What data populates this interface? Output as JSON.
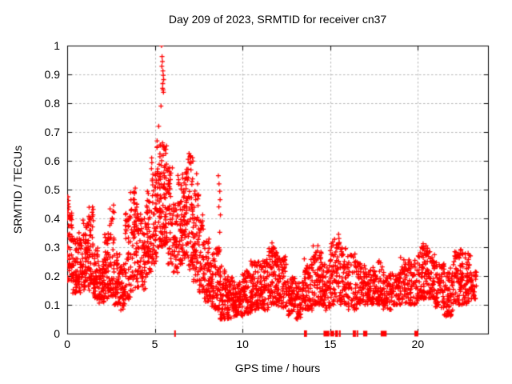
{
  "chart_data": {
    "type": "scatter",
    "title": "Day 209 of 2023, SRMTID for receiver cn37",
    "xlabel": "GPS time / hours",
    "ylabel": "SRMTID / TECUs",
    "xlim": [
      0,
      24
    ],
    "ylim": [
      0,
      1
    ],
    "xticks": [
      0,
      5,
      10,
      15,
      20
    ],
    "xtick_labels": [
      "0",
      "5",
      "10",
      "15",
      "20"
    ],
    "ytick_values": [
      0,
      0.1,
      0.2,
      0.3,
      0.4,
      0.5,
      0.6,
      0.7,
      0.8,
      0.9,
      1
    ],
    "ytick_labels": [
      "0",
      "0.1",
      "0.2",
      "0.3",
      "0.4",
      "0.5",
      "0.6",
      "0.7",
      "0.8",
      "0.9",
      "1"
    ],
    "grid": true,
    "legend": false,
    "marker": "plus",
    "marker_color": "#ff0000",
    "grid_color": "#b4b4b4",
    "border_color": "#000000",
    "series_name": "SRMTID",
    "density_bands": [
      [
        0.0,
        0.3,
        0.18,
        0.42,
        60
      ],
      [
        0.3,
        0.6,
        0.14,
        0.33,
        44
      ],
      [
        0.6,
        0.9,
        0.14,
        0.35,
        46
      ],
      [
        0.9,
        1.2,
        0.15,
        0.4,
        52
      ],
      [
        1.2,
        1.5,
        0.14,
        0.44,
        54
      ],
      [
        1.5,
        1.8,
        0.12,
        0.3,
        46
      ],
      [
        1.8,
        2.1,
        0.1,
        0.26,
        44
      ],
      [
        2.1,
        2.4,
        0.12,
        0.36,
        46
      ],
      [
        2.4,
        2.7,
        0.13,
        0.46,
        46
      ],
      [
        2.7,
        3.0,
        0.1,
        0.3,
        42
      ],
      [
        3.0,
        3.3,
        0.08,
        0.24,
        40
      ],
      [
        3.3,
        3.6,
        0.12,
        0.42,
        44
      ],
      [
        3.6,
        3.9,
        0.14,
        0.51,
        50
      ],
      [
        3.9,
        4.2,
        0.16,
        0.45,
        46
      ],
      [
        4.2,
        4.5,
        0.15,
        0.4,
        42
      ],
      [
        4.5,
        4.8,
        0.2,
        0.5,
        46
      ],
      [
        4.8,
        5.1,
        0.24,
        0.62,
        50
      ],
      [
        5.1,
        5.4,
        0.3,
        0.68,
        54
      ],
      [
        5.4,
        5.7,
        0.3,
        0.66,
        54
      ],
      [
        5.7,
        6.0,
        0.24,
        0.58,
        46
      ],
      [
        6.0,
        6.3,
        0.2,
        0.46,
        42
      ],
      [
        6.3,
        6.6,
        0.24,
        0.56,
        48
      ],
      [
        6.6,
        6.9,
        0.26,
        0.6,
        54
      ],
      [
        6.9,
        7.2,
        0.22,
        0.62,
        52
      ],
      [
        7.2,
        7.5,
        0.18,
        0.52,
        44
      ],
      [
        7.5,
        7.8,
        0.14,
        0.42,
        42
      ],
      [
        7.8,
        8.1,
        0.11,
        0.33,
        42
      ],
      [
        8.1,
        8.4,
        0.09,
        0.28,
        42
      ],
      [
        8.4,
        8.7,
        0.08,
        0.3,
        40
      ],
      [
        8.7,
        9.0,
        0.05,
        0.24,
        44
      ],
      [
        9.0,
        9.5,
        0.05,
        0.2,
        70
      ],
      [
        9.5,
        10.0,
        0.06,
        0.18,
        70
      ],
      [
        10.0,
        10.5,
        0.07,
        0.22,
        65
      ],
      [
        10.5,
        11.0,
        0.08,
        0.25,
        65
      ],
      [
        11.0,
        11.5,
        0.08,
        0.26,
        68
      ],
      [
        11.5,
        12.0,
        0.1,
        0.3,
        75
      ],
      [
        12.0,
        12.5,
        0.09,
        0.27,
        65
      ],
      [
        12.5,
        13.0,
        0.06,
        0.2,
        60
      ],
      [
        13.0,
        13.5,
        0.05,
        0.18,
        58
      ],
      [
        13.5,
        14.0,
        0.08,
        0.26,
        60
      ],
      [
        14.0,
        14.5,
        0.1,
        0.31,
        64
      ],
      [
        14.5,
        15.0,
        0.08,
        0.25,
        60
      ],
      [
        15.0,
        15.5,
        0.1,
        0.33,
        64
      ],
      [
        15.5,
        16.0,
        0.1,
        0.3,
        60
      ],
      [
        16.0,
        16.5,
        0.08,
        0.28,
        58
      ],
      [
        16.5,
        17.0,
        0.1,
        0.25,
        58
      ],
      [
        17.0,
        17.5,
        0.1,
        0.23,
        58
      ],
      [
        17.5,
        18.0,
        0.1,
        0.26,
        58
      ],
      [
        18.0,
        18.5,
        0.08,
        0.22,
        56
      ],
      [
        18.5,
        19.0,
        0.1,
        0.21,
        52
      ],
      [
        19.0,
        19.5,
        0.1,
        0.27,
        52
      ],
      [
        19.5,
        20.0,
        0.1,
        0.26,
        52
      ],
      [
        20.0,
        20.5,
        0.12,
        0.31,
        66
      ],
      [
        20.5,
        21.0,
        0.12,
        0.29,
        64
      ],
      [
        21.0,
        21.5,
        0.09,
        0.25,
        58
      ],
      [
        21.5,
        22.0,
        0.06,
        0.24,
        58
      ],
      [
        22.0,
        22.5,
        0.1,
        0.29,
        66
      ],
      [
        22.5,
        23.0,
        0.1,
        0.28,
        62
      ],
      [
        23.0,
        23.35,
        0.12,
        0.22,
        36
      ]
    ],
    "points_high": [
      [
        0.04,
        0.475
      ],
      [
        0.07,
        0.462
      ],
      [
        0.05,
        0.45
      ],
      [
        0.09,
        0.44
      ],
      [
        0.06,
        0.431
      ],
      [
        0.03,
        0.42
      ],
      [
        5.38,
        1.0
      ],
      [
        5.41,
        0.962
      ],
      [
        5.43,
        0.945
      ],
      [
        5.4,
        0.928
      ],
      [
        5.46,
        0.912
      ],
      [
        5.48,
        0.897
      ],
      [
        5.5,
        0.882
      ],
      [
        5.45,
        0.868
      ],
      [
        5.44,
        0.852
      ],
      [
        5.47,
        0.846
      ],
      [
        5.49,
        0.838
      ],
      [
        5.35,
        0.79
      ],
      [
        5.22,
        0.72
      ],
      [
        5.44,
        0.662
      ],
      [
        5.52,
        0.65
      ],
      [
        5.57,
        0.64
      ],
      [
        5.3,
        0.655
      ],
      [
        6.95,
        0.625
      ],
      [
        7.0,
        0.615
      ],
      [
        6.9,
        0.605
      ],
      [
        7.05,
        0.595
      ],
      [
        7.38,
        0.555
      ],
      [
        7.44,
        0.52
      ],
      [
        7.5,
        0.482
      ],
      [
        7.46,
        0.445
      ],
      [
        8.62,
        0.548
      ],
      [
        8.66,
        0.52
      ],
      [
        8.7,
        0.494
      ],
      [
        8.72,
        0.465
      ],
      [
        8.65,
        0.44
      ],
      [
        8.74,
        0.412
      ],
      [
        8.7,
        0.352
      ],
      [
        10.48,
        0.252
      ],
      [
        10.55,
        0.24
      ],
      [
        11.68,
        0.315
      ],
      [
        11.75,
        0.3
      ],
      [
        11.62,
        0.288
      ],
      [
        14.3,
        0.305
      ],
      [
        14.27,
        0.287
      ],
      [
        15.48,
        0.345
      ],
      [
        15.5,
        0.33
      ],
      [
        15.52,
        0.316
      ],
      [
        15.46,
        0.3
      ],
      [
        20.3,
        0.312
      ],
      [
        20.22,
        0.3
      ],
      [
        20.55,
        0.296
      ],
      [
        20.45,
        0.288
      ],
      [
        22.46,
        0.292
      ],
      [
        22.55,
        0.28
      ],
      [
        22.4,
        0.272
      ]
    ],
    "baseline_marks": {
      "thin": [
        6.15,
        13.55,
        13.63,
        15.33,
        15.4,
        15.55,
        16.33,
        16.42,
        16.55
      ],
      "wide": [
        [
          14.62,
          14.95
        ],
        [
          15.0,
          15.22
        ],
        [
          16.88,
          17.12
        ],
        [
          17.88,
          18.22
        ],
        [
          19.8,
          20.02
        ]
      ]
    }
  }
}
